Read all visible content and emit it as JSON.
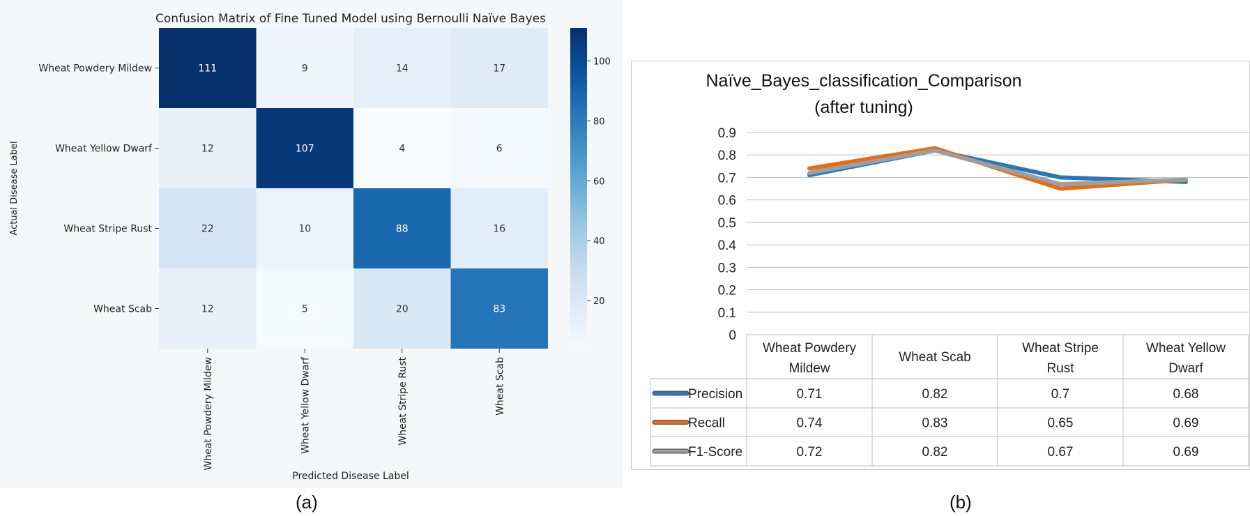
{
  "captions": {
    "a": "(a)",
    "b": "(b)"
  },
  "chart_data": [
    {
      "type": "heatmap",
      "title": "Confusion Matrix of Fine Tuned Model using Bernoulli Naïve Bayes",
      "xlabel": "Predicted Disease Label",
      "ylabel": "Actual Disease Label",
      "row_labels": [
        "Wheat Powdery Mildew",
        "Wheat Yellow Dwarf",
        "Wheat Stripe Rust",
        "Wheat Scab"
      ],
      "col_labels": [
        "Wheat Powdery Mildew",
        "Wheat Yellow Dwarf",
        "Wheat Stripe Rust",
        "Wheat Scab"
      ],
      "values": [
        [
          111,
          9,
          14,
          17
        ],
        [
          12,
          107,
          4,
          6
        ],
        [
          22,
          10,
          88,
          16
        ],
        [
          12,
          5,
          20,
          83
        ]
      ],
      "colorbar": {
        "ticks": [
          20,
          40,
          60,
          80,
          100
        ],
        "range": [
          4,
          111
        ],
        "colormap": "Blues"
      }
    },
    {
      "type": "line",
      "title": "Naïve_Bayes_classification_Comparison",
      "subtitle": "(after tuning)",
      "categories": [
        "Wheat Powdery Mildew",
        "Wheat Scab",
        "Wheat Stripe Rust",
        "Wheat Yellow Dwarf"
      ],
      "series": [
        {
          "name": "Precision",
          "values": [
            0.71,
            0.82,
            0.7,
            0.68
          ],
          "color": "#2e75b6"
        },
        {
          "name": "Recall",
          "values": [
            0.74,
            0.83,
            0.65,
            0.69
          ],
          "color": "#e46c1a"
        },
        {
          "name": "F1-Score",
          "values": [
            0.72,
            0.82,
            0.67,
            0.69
          ],
          "color": "#9e9e9e"
        }
      ],
      "ylim": [
        0,
        0.9
      ],
      "yticks": [
        "0",
        "0.1",
        "0.2",
        "0.3",
        "0.4",
        "0.5",
        "0.6",
        "0.7",
        "0.8",
        "0.9"
      ],
      "grid": true,
      "data_table": true
    }
  ]
}
